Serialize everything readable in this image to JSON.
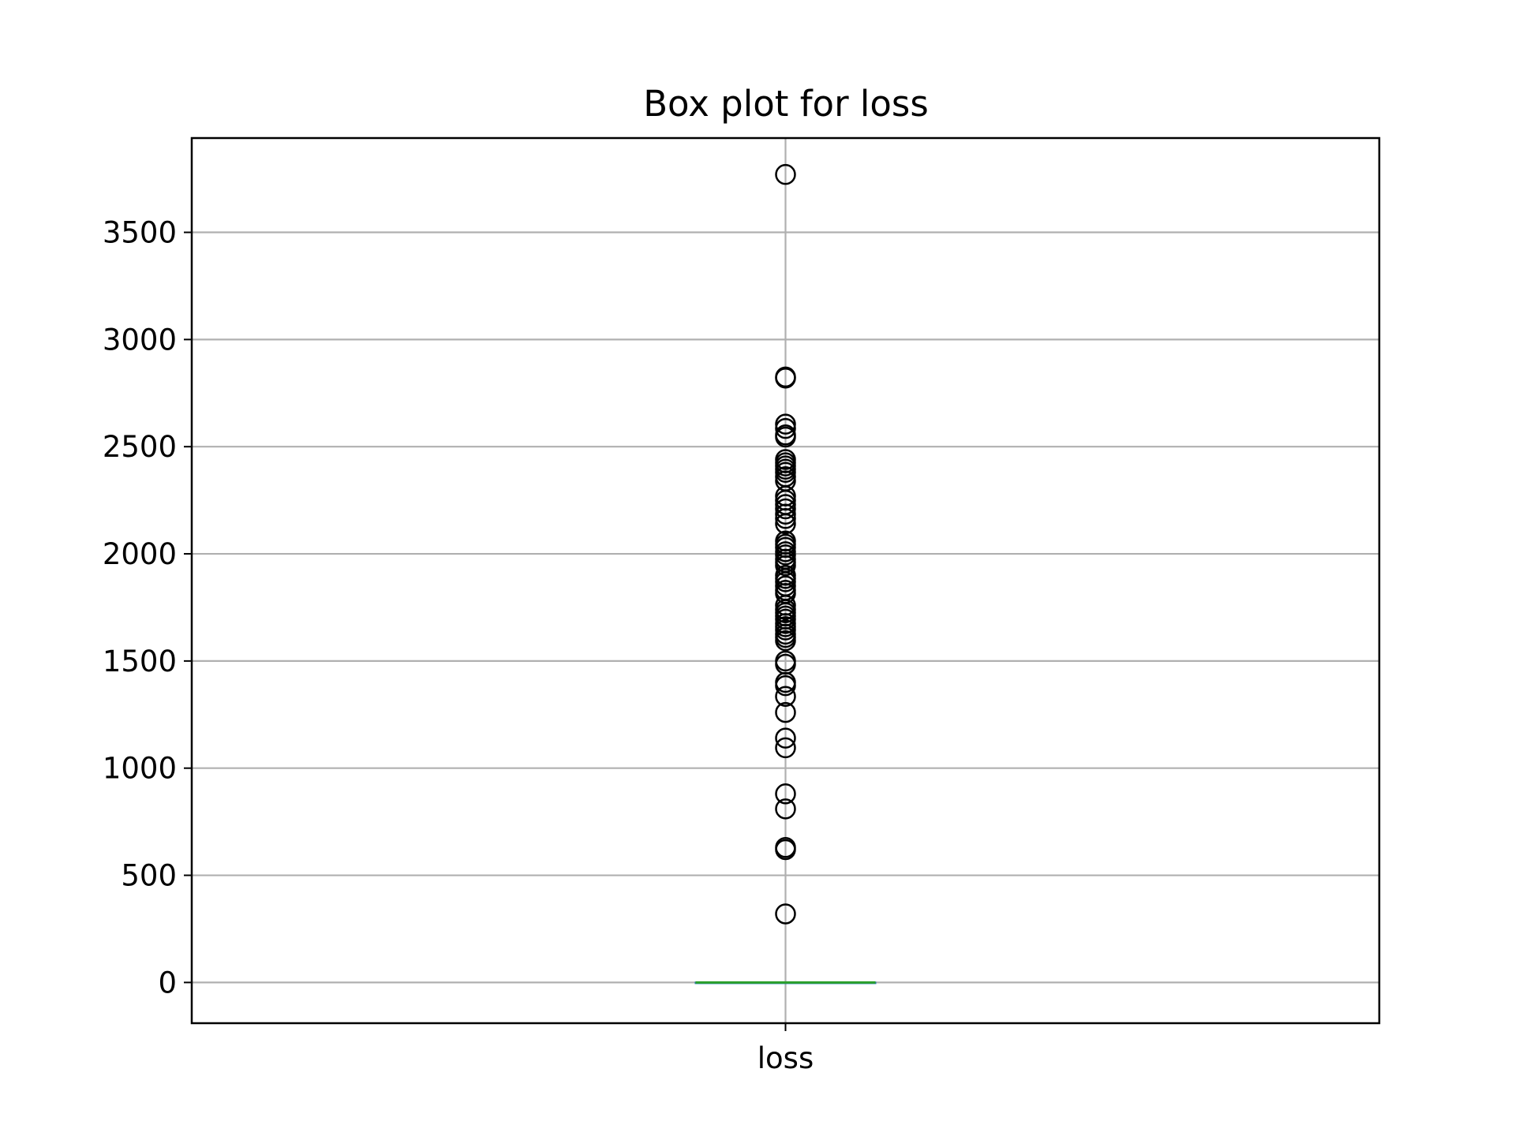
{
  "chart_data": {
    "type": "box",
    "title": "Box plot for loss",
    "xlabel": "",
    "ylabel": "",
    "categories": [
      "loss"
    ],
    "ylim": [
      -190,
      3940
    ],
    "yticks": [
      0,
      500,
      1000,
      1500,
      2000,
      2500,
      3000,
      3500
    ],
    "ytick_labels": [
      "0",
      "500",
      "1000",
      "1500",
      "2000",
      "2500",
      "3000",
      "3500"
    ],
    "grid": true,
    "box": {
      "q1": 0,
      "median": 0,
      "q3": 0,
      "whisker_low": 0,
      "whisker_high": 0,
      "box_color": "#1f77b4",
      "median_color": "#2ca02c"
    },
    "outliers": [
      3770,
      2825,
      2820,
      2605,
      2585,
      2555,
      2545,
      2440,
      2425,
      2410,
      2395,
      2380,
      2360,
      2340,
      2270,
      2250,
      2230,
      2210,
      2185,
      2165,
      2140,
      2060,
      2045,
      2030,
      2010,
      1995,
      1975,
      1960,
      1945,
      1900,
      1885,
      1870,
      1850,
      1830,
      1815,
      1760,
      1740,
      1725,
      1710,
      1695,
      1675,
      1660,
      1645,
      1625,
      1610,
      1595,
      1500,
      1485,
      1400,
      1385,
      1335,
      1260,
      1140,
      1095,
      880,
      810,
      630,
      620,
      320
    ]
  }
}
